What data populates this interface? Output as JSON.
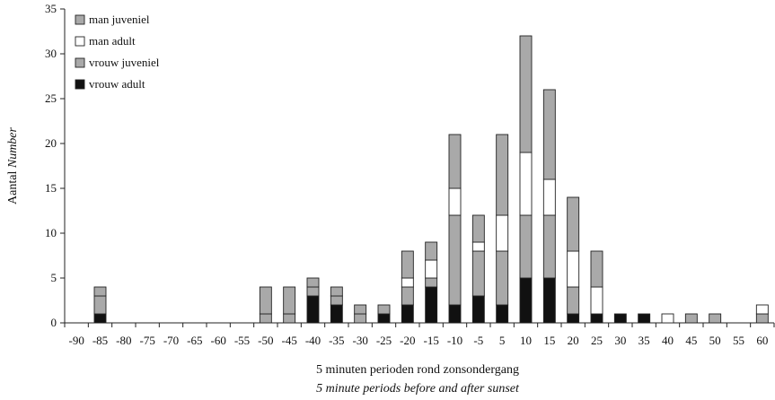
{
  "chart_data": {
    "type": "bar",
    "stacked": true,
    "xlabel": "5 minuten perioden rond zonsondergang",
    "xlabel_en": "5 minute periods before and after sunset",
    "ylabel_nl": "Aantal",
    "ylabel_en": "Number",
    "ylim": [
      0,
      35
    ],
    "yticks": [
      "0",
      "5",
      "10",
      "15",
      "20",
      "25",
      "30",
      "35"
    ],
    "grid": false,
    "legend_placement": "top-left",
    "categories": [
      "-90",
      "-85",
      "-80",
      "-75",
      "-70",
      "-65",
      "-60",
      "-55",
      "-50",
      "-45",
      "-40",
      "-35",
      "-30",
      "-25",
      "-20",
      "-15",
      "-10",
      "-5",
      "5",
      "10",
      "15",
      "20",
      "25",
      "30",
      "35",
      "40",
      "45",
      "50",
      "55",
      "60"
    ],
    "series": [
      {
        "name": "vrouw adult",
        "color": "#111111",
        "values": [
          0,
          1,
          0,
          0,
          0,
          0,
          0,
          0,
          0,
          0,
          3,
          2,
          0,
          1,
          2,
          4,
          2,
          3,
          2,
          5,
          5,
          1,
          1,
          1,
          1,
          0,
          0,
          0,
          0,
          0
        ]
      },
      {
        "name": "vrouw juveniel",
        "color": "#a9a9a9",
        "values": [
          0,
          2,
          0,
          0,
          0,
          0,
          0,
          0,
          1,
          1,
          1,
          1,
          1,
          0,
          2,
          1,
          10,
          5,
          6,
          7,
          7,
          3,
          0,
          0,
          0,
          0,
          1,
          1,
          0,
          1
        ]
      },
      {
        "name": "man adult",
        "color": "#ffffff",
        "values": [
          0,
          0,
          0,
          0,
          0,
          0,
          0,
          0,
          0,
          0,
          0,
          0,
          0,
          0,
          1,
          2,
          3,
          1,
          4,
          7,
          4,
          4,
          3,
          0,
          0,
          1,
          0,
          0,
          0,
          1
        ]
      },
      {
        "name": "man juveniel",
        "color": "#a9a9a9",
        "values": [
          0,
          1,
          0,
          0,
          0,
          0,
          0,
          0,
          3,
          3,
          1,
          1,
          1,
          1,
          3,
          2,
          6,
          3,
          9,
          13,
          10,
          6,
          4,
          0,
          0,
          0,
          0,
          0,
          0,
          0
        ]
      }
    ],
    "legend_order": [
      "man juveniel",
      "man adult",
      "vrouw juveniel",
      "vrouw adult"
    ]
  }
}
